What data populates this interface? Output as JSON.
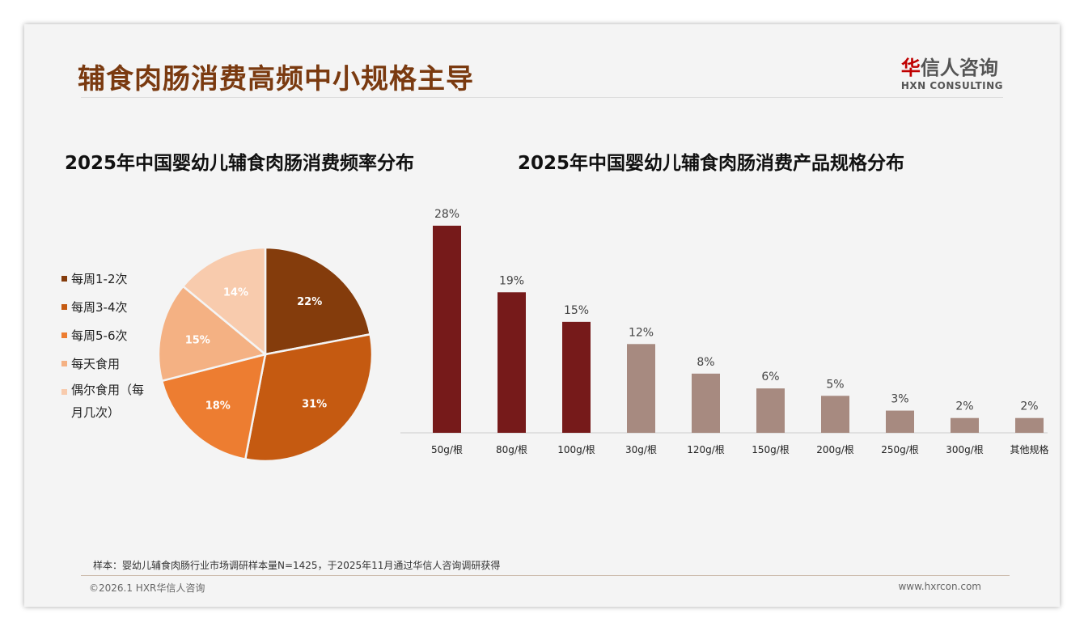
{
  "header": {
    "title": "辅食肉肠消费高频中小规格主导",
    "logo_cn_red": "华",
    "logo_cn": "信人咨询",
    "logo_en": "HXN CONSULTING"
  },
  "footer": {
    "note": "样本：婴幼儿辅食肉肠行业市场调研样本量N=1425，于2025年11月通过华信人咨询调研获得",
    "copyright": "©2026.1 HXR华信人咨询",
    "website": "www.hxrcon.com"
  },
  "chart_data": [
    {
      "type": "pie",
      "title": "2025年中国婴幼儿辅食肉肠消费频率分布",
      "categories": [
        "每周1-2次",
        "每周3-4次",
        "每周5-6次",
        "每天食用",
        "偶尔食用（每月几次）"
      ],
      "values": [
        22,
        31,
        18,
        15,
        14
      ],
      "labels": [
        "22%",
        "31%",
        "18%",
        "15%",
        "14%"
      ],
      "colors": [
        "#843c0c",
        "#c55a11",
        "#ed7d31",
        "#f4b183",
        "#f8cbad"
      ],
      "legend": "left"
    },
    {
      "type": "bar",
      "title": "2025年中国婴幼儿辅食肉肠消费产品规格分布",
      "categories": [
        "50g/根",
        "80g/根",
        "100g/根",
        "30g/根",
        "120g/根",
        "150g/根",
        "200g/根",
        "250g/根",
        "300g/根",
        "其他规格"
      ],
      "values": [
        28,
        19,
        15,
        12,
        8,
        6,
        5,
        3,
        2,
        2
      ],
      "labels": [
        "28%",
        "19%",
        "15%",
        "12%",
        "8%",
        "6%",
        "5%",
        "3%",
        "2%",
        "2%"
      ],
      "colors": {
        "highlight": "#761a1a",
        "normal": "#a78a80"
      },
      "highlight_count": 3,
      "ylim": [
        0,
        30
      ]
    }
  ]
}
